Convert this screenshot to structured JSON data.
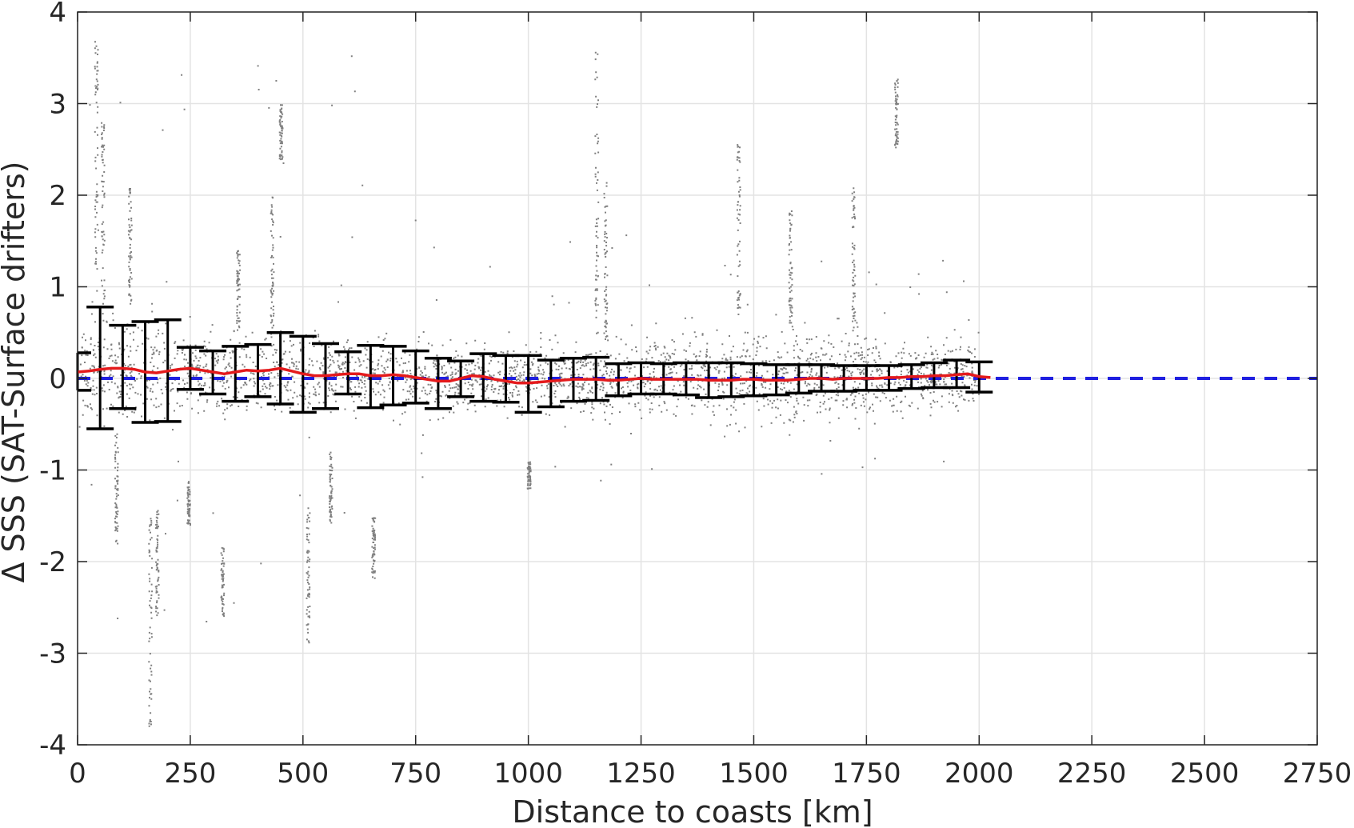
{
  "chart_data": {
    "type": "scatter",
    "title": "",
    "xlabel": "Distance to coasts [km]",
    "ylabel": "Δ SSS (SAT-Surface drifters)",
    "xlim": [
      0,
      2750
    ],
    "ylim": [
      -4,
      4
    ],
    "x_ticks": [
      0,
      250,
      500,
      750,
      1000,
      1250,
      1500,
      1750,
      2000,
      2250,
      2500,
      2750
    ],
    "y_ticks": [
      -4,
      -3,
      -2,
      -1,
      0,
      1,
      2,
      3,
      4
    ],
    "x_tick_labels": [
      "0",
      "250",
      "500",
      "750",
      "1000",
      "1250",
      "1500",
      "1750",
      "2000",
      "2250",
      "2500",
      "2750"
    ],
    "y_tick_labels": [
      "-4",
      "-3",
      "-2",
      "-1",
      "0",
      "1",
      "2",
      "3",
      "4"
    ],
    "grid": true,
    "colors": {
      "scatter": "#808080",
      "mean_line": "#e41a1c",
      "zero_line": "#1f1fe0",
      "errorbar": "#000000",
      "grid": "#e3e3e3",
      "axes": "#262626"
    },
    "scatter_cloud": {
      "description_of_density": "dense gray points; x from 0 to 2000 km",
      "x_range": [
        0,
        2000
      ],
      "core_band": [
        [
          0,
          -0.45,
          0.65
        ],
        [
          250,
          -0.35,
          0.5
        ],
        [
          500,
          -0.3,
          0.45
        ],
        [
          750,
          -0.3,
          0.35
        ],
        [
          1000,
          -0.3,
          0.3
        ],
        [
          1250,
          -0.35,
          0.4
        ],
        [
          1500,
          -0.45,
          0.5
        ],
        [
          1750,
          -0.35,
          0.45
        ],
        [
          2000,
          -0.3,
          0.35
        ]
      ]
    },
    "zero_line": {
      "y": 0,
      "x_range": [
        0,
        2750
      ],
      "style": "dashed"
    },
    "mean_line": {
      "x": [
        0,
        25,
        50,
        75,
        100,
        125,
        150,
        175,
        200,
        225,
        250,
        275,
        300,
        325,
        350,
        375,
        400,
        425,
        450,
        475,
        500,
        525,
        550,
        575,
        600,
        625,
        650,
        675,
        700,
        725,
        750,
        775,
        800,
        825,
        850,
        875,
        900,
        925,
        950,
        975,
        1000,
        1025,
        1050,
        1075,
        1100,
        1125,
        1150,
        1175,
        1200,
        1225,
        1250,
        1275,
        1300,
        1325,
        1350,
        1375,
        1400,
        1425,
        1450,
        1475,
        1500,
        1525,
        1550,
        1575,
        1600,
        1625,
        1650,
        1675,
        1700,
        1725,
        1750,
        1775,
        1800,
        1825,
        1850,
        1875,
        1900,
        1925,
        1950,
        1975,
        2000,
        2025
      ],
      "y": [
        0.07,
        0.08,
        0.1,
        0.11,
        0.11,
        0.1,
        0.07,
        0.06,
        0.08,
        0.1,
        0.11,
        0.09,
        0.07,
        0.05,
        0.07,
        0.09,
        0.08,
        0.09,
        0.11,
        0.08,
        0.05,
        0.03,
        0.03,
        0.04,
        0.05,
        0.05,
        0.03,
        0.03,
        0.04,
        0.03,
        0.01,
        -0.01,
        -0.03,
        -0.03,
        0.0,
        0.03,
        0.02,
        -0.01,
        -0.03,
        -0.05,
        -0.05,
        -0.04,
        -0.03,
        -0.02,
        -0.01,
        -0.01,
        -0.01,
        -0.02,
        -0.02,
        -0.01,
        0.0,
        -0.01,
        -0.01,
        -0.01,
        -0.01,
        -0.01,
        -0.02,
        -0.02,
        -0.02,
        -0.01,
        -0.01,
        -0.02,
        -0.02,
        -0.02,
        -0.01,
        0.0,
        0.0,
        -0.01,
        0.0,
        0.0,
        0.0,
        0.0,
        0.01,
        0.01,
        0.02,
        0.02,
        0.03,
        0.03,
        0.04,
        0.05,
        0.02,
        0.01
      ]
    },
    "error_bars": [
      {
        "x": 0,
        "mean": 0.07,
        "lower": -0.13,
        "upper": 0.28
      },
      {
        "x": 50,
        "mean": 0.1,
        "lower": -0.55,
        "upper": 0.78
      },
      {
        "x": 100,
        "mean": 0.11,
        "lower": -0.33,
        "upper": 0.58
      },
      {
        "x": 150,
        "mean": 0.07,
        "lower": -0.48,
        "upper": 0.62
      },
      {
        "x": 200,
        "mean": 0.08,
        "lower": -0.47,
        "upper": 0.64
      },
      {
        "x": 250,
        "mean": 0.11,
        "lower": -0.12,
        "upper": 0.34
      },
      {
        "x": 300,
        "mean": 0.07,
        "lower": -0.17,
        "upper": 0.3
      },
      {
        "x": 350,
        "mean": 0.07,
        "lower": -0.25,
        "upper": 0.35
      },
      {
        "x": 400,
        "mean": 0.08,
        "lower": -0.2,
        "upper": 0.37
      },
      {
        "x": 450,
        "mean": 0.11,
        "lower": -0.28,
        "upper": 0.5
      },
      {
        "x": 500,
        "mean": 0.05,
        "lower": -0.37,
        "upper": 0.46
      },
      {
        "x": 550,
        "mean": 0.03,
        "lower": -0.33,
        "upper": 0.38
      },
      {
        "x": 600,
        "mean": 0.05,
        "lower": -0.17,
        "upper": 0.29
      },
      {
        "x": 650,
        "mean": 0.03,
        "lower": -0.32,
        "upper": 0.36
      },
      {
        "x": 700,
        "mean": 0.04,
        "lower": -0.29,
        "upper": 0.35
      },
      {
        "x": 750,
        "mean": 0.01,
        "lower": -0.27,
        "upper": 0.3
      },
      {
        "x": 800,
        "mean": -0.03,
        "lower": -0.33,
        "upper": 0.22
      },
      {
        "x": 850,
        "mean": 0.0,
        "lower": -0.2,
        "upper": 0.19
      },
      {
        "x": 900,
        "mean": 0.02,
        "lower": -0.25,
        "upper": 0.27
      },
      {
        "x": 950,
        "mean": -0.03,
        "lower": -0.26,
        "upper": 0.25
      },
      {
        "x": 1000,
        "mean": -0.05,
        "lower": -0.37,
        "upper": 0.25
      },
      {
        "x": 1050,
        "mean": -0.03,
        "lower": -0.31,
        "upper": 0.2
      },
      {
        "x": 1100,
        "mean": -0.01,
        "lower": -0.25,
        "upper": 0.22
      },
      {
        "x": 1150,
        "mean": -0.01,
        "lower": -0.24,
        "upper": 0.23
      },
      {
        "x": 1200,
        "mean": -0.02,
        "lower": -0.19,
        "upper": 0.16
      },
      {
        "x": 1250,
        "mean": 0.0,
        "lower": -0.17,
        "upper": 0.17
      },
      {
        "x": 1300,
        "mean": -0.01,
        "lower": -0.17,
        "upper": 0.16
      },
      {
        "x": 1350,
        "mean": -0.01,
        "lower": -0.18,
        "upper": 0.17
      },
      {
        "x": 1400,
        "mean": -0.02,
        "lower": -0.21,
        "upper": 0.17
      },
      {
        "x": 1450,
        "mean": -0.02,
        "lower": -0.2,
        "upper": 0.17
      },
      {
        "x": 1500,
        "mean": -0.01,
        "lower": -0.19,
        "upper": 0.16
      },
      {
        "x": 1550,
        "mean": -0.02,
        "lower": -0.18,
        "upper": 0.15
      },
      {
        "x": 1600,
        "mean": -0.01,
        "lower": -0.16,
        "upper": 0.15
      },
      {
        "x": 1650,
        "mean": 0.0,
        "lower": -0.14,
        "upper": 0.15
      },
      {
        "x": 1700,
        "mean": 0.0,
        "lower": -0.14,
        "upper": 0.14
      },
      {
        "x": 1750,
        "mean": 0.0,
        "lower": -0.13,
        "upper": 0.14
      },
      {
        "x": 1800,
        "mean": 0.01,
        "lower": -0.13,
        "upper": 0.14
      },
      {
        "x": 1850,
        "mean": 0.02,
        "lower": -0.11,
        "upper": 0.15
      },
      {
        "x": 1900,
        "mean": 0.03,
        "lower": -0.1,
        "upper": 0.17
      },
      {
        "x": 1950,
        "mean": 0.05,
        "lower": -0.1,
        "upper": 0.2
      },
      {
        "x": 2000,
        "mean": 0.02,
        "lower": -0.15,
        "upper": 0.18
      }
    ]
  }
}
